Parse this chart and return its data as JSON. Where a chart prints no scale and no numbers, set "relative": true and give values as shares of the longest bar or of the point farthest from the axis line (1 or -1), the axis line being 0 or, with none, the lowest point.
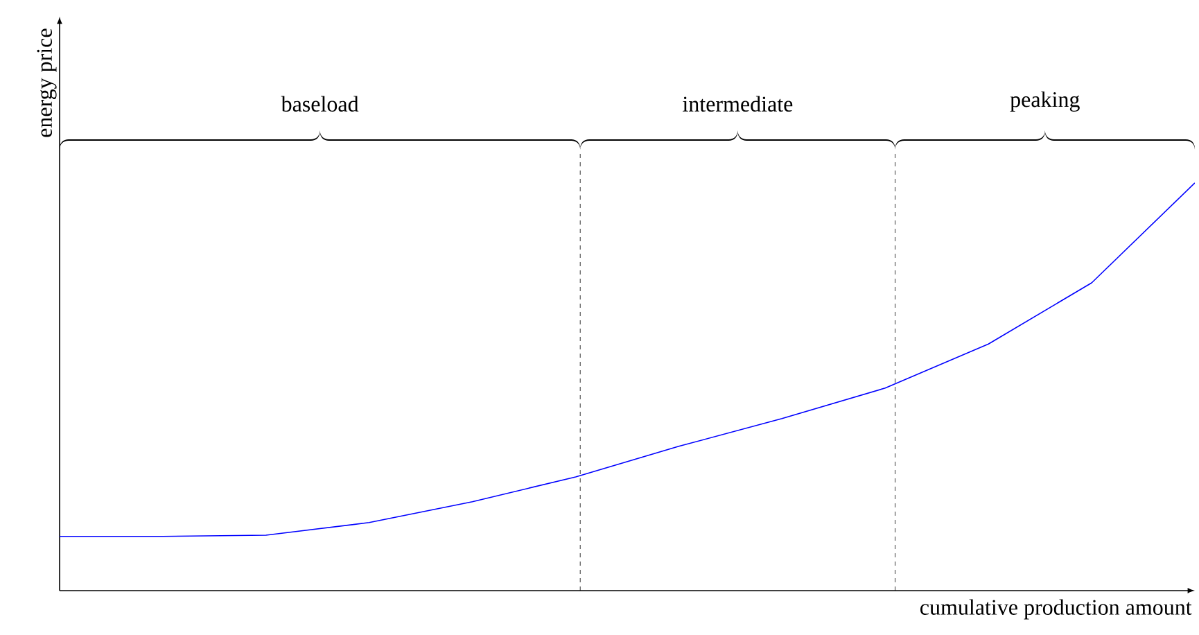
{
  "chart_data": {
    "type": "line",
    "relative": true,
    "xlabel": "cumulative production amount",
    "ylabel": "energy price",
    "categories": [
      null,
      null,
      null,
      null,
      null,
      null,
      null,
      null,
      null,
      null,
      null,
      null
    ],
    "series": [
      {
        "color": "#0000ff",
        "values": [
          0.133,
          0.133,
          0.136,
          0.167,
          0.218,
          0.279,
          0.354,
          0.422,
          0.497,
          0.605,
          0.755,
          1
        ]
      }
    ],
    "marker": "none",
    "line_style": "solid",
    "annotations": [
      "baseload",
      "intermediate",
      "peaking"
    ]
  }
}
